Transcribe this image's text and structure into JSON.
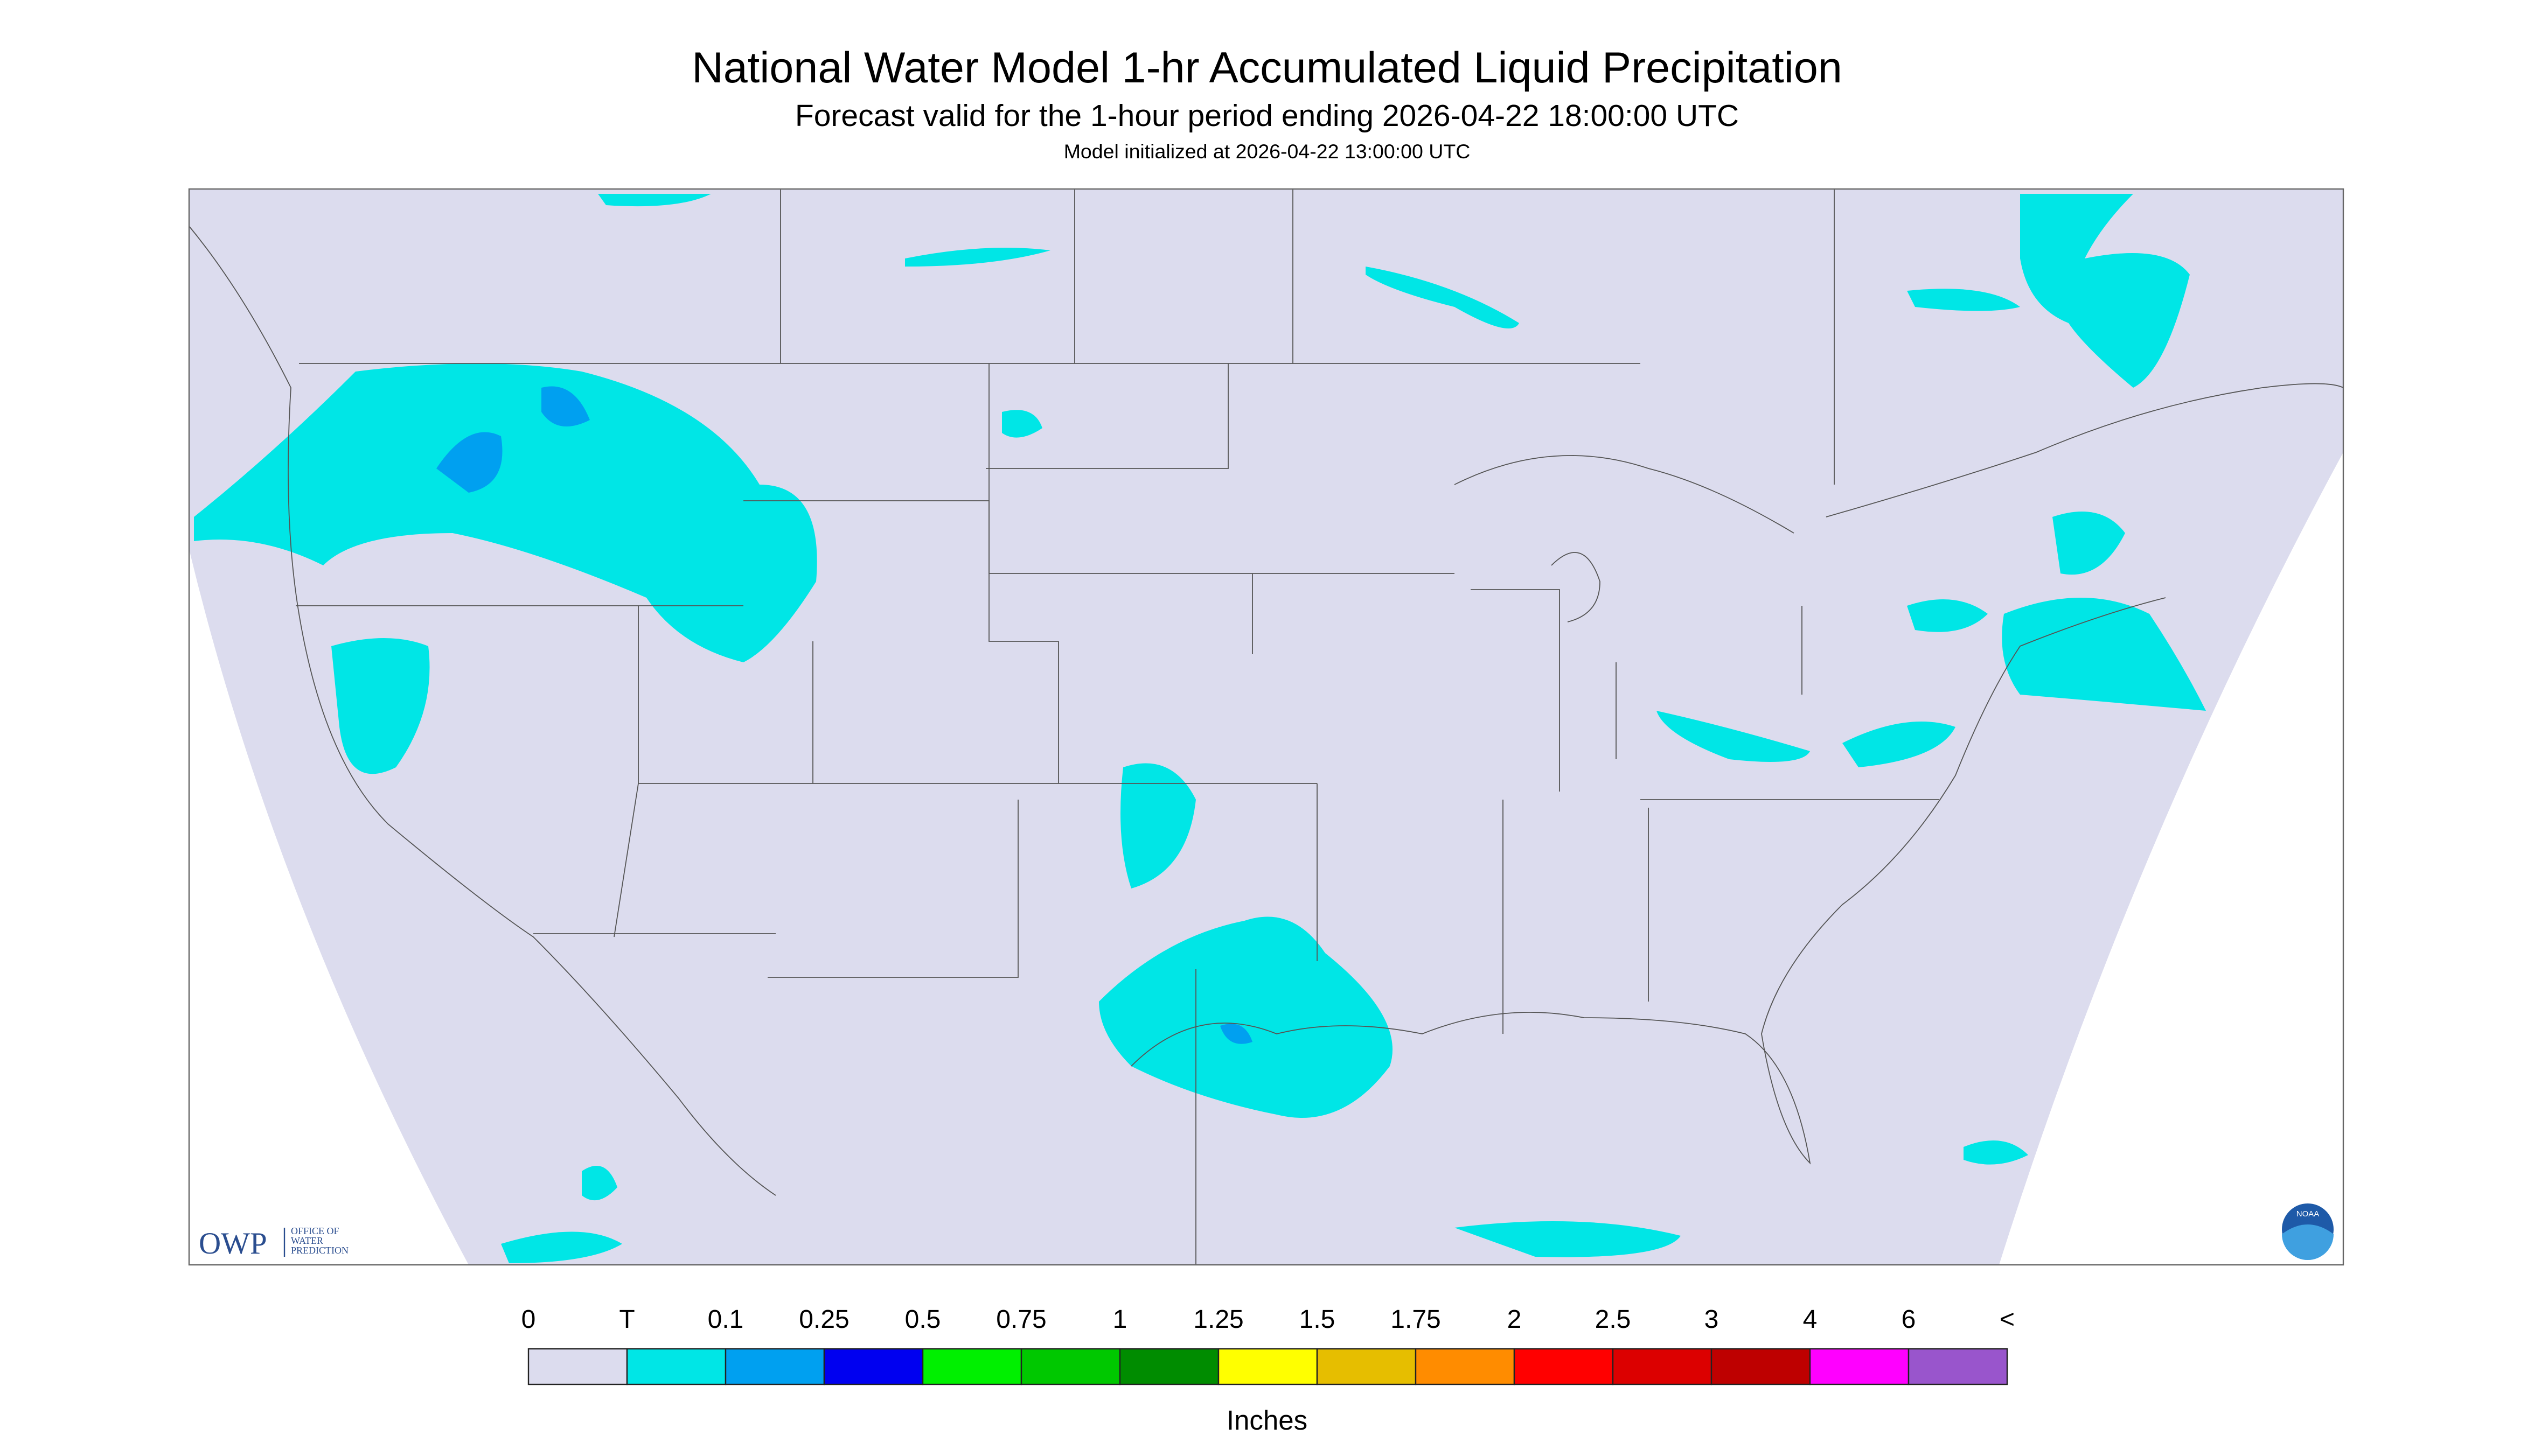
{
  "header": {
    "title": "National Water Model 1-hr Accumulated Liquid Precipitation",
    "subtitle": "Forecast valid for the 1-hour period ending 2026-04-22 18:00:00 UTC",
    "note": "Model initialized at 2026-04-22 13:00:00 UTC"
  },
  "logo": {
    "short": "OWP",
    "lines": [
      "OFFICE OF",
      "WATER",
      "PREDICTION"
    ],
    "agency": "NOAA"
  },
  "legend": {
    "labels": [
      "0",
      "T",
      "0.1",
      "0.25",
      "0.5",
      "0.75",
      "1",
      "1.25",
      "1.5",
      "1.75",
      "2",
      "2.5",
      "3",
      "4",
      "6",
      "<"
    ],
    "colors": [
      "#dcdcee",
      "#00e6e6",
      "#00a0f0",
      "#0000f0",
      "#00f000",
      "#00c800",
      "#008c00",
      "#ffff00",
      "#e6be00",
      "#ff8c00",
      "#ff0000",
      "#dc0000",
      "#be0000",
      "#ff00ff",
      "#9955cc"
    ],
    "unit": "Inches"
  }
}
